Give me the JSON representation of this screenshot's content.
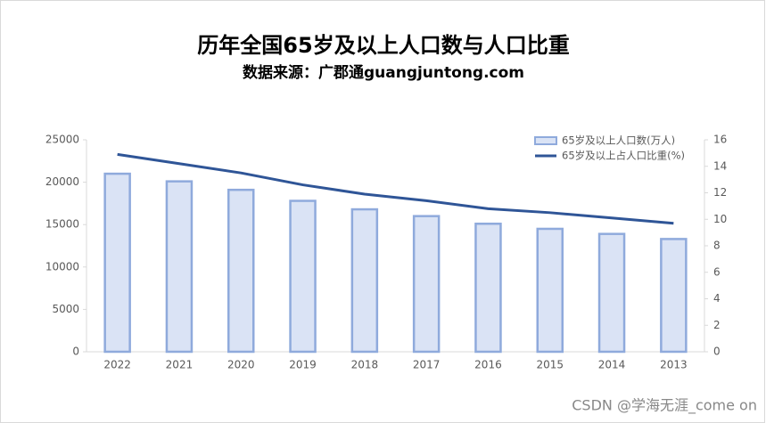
{
  "chart_data": {
    "type": "bar-line",
    "title": "历年全国65岁及以上人口数与人口比重",
    "subtitle": "数据来源：广郡通guangjuntong.com",
    "categories": [
      "2022",
      "2021",
      "2020",
      "2019",
      "2018",
      "2017",
      "2016",
      "2015",
      "2014",
      "2013"
    ],
    "series": [
      {
        "name": "65岁及以上人口数(万人)",
        "type": "bar",
        "axis": "y",
        "color": "#8faadc",
        "fill_color": "#dae3f5",
        "values": [
          21000,
          20100,
          19100,
          17800,
          16800,
          16000,
          15100,
          14500,
          13900,
          13300
        ]
      },
      {
        "name": "65岁及以上占人口比重(%)",
        "type": "line",
        "axis": "y2",
        "color": "#2f5597",
        "values": [
          14.9,
          14.2,
          13.5,
          12.6,
          11.9,
          11.4,
          10.8,
          10.5,
          10.1,
          9.7
        ]
      }
    ],
    "ylim": [
      0,
      25000
    ],
    "yticks": [
      0,
      5000,
      10000,
      15000,
      20000,
      25000
    ],
    "y2lim": [
      0,
      16
    ],
    "y2ticks": [
      0,
      2,
      4,
      6,
      8,
      10,
      12,
      14,
      16
    ],
    "legend": "top-right"
  },
  "watermark": "CSDN @学海无涯_come on"
}
